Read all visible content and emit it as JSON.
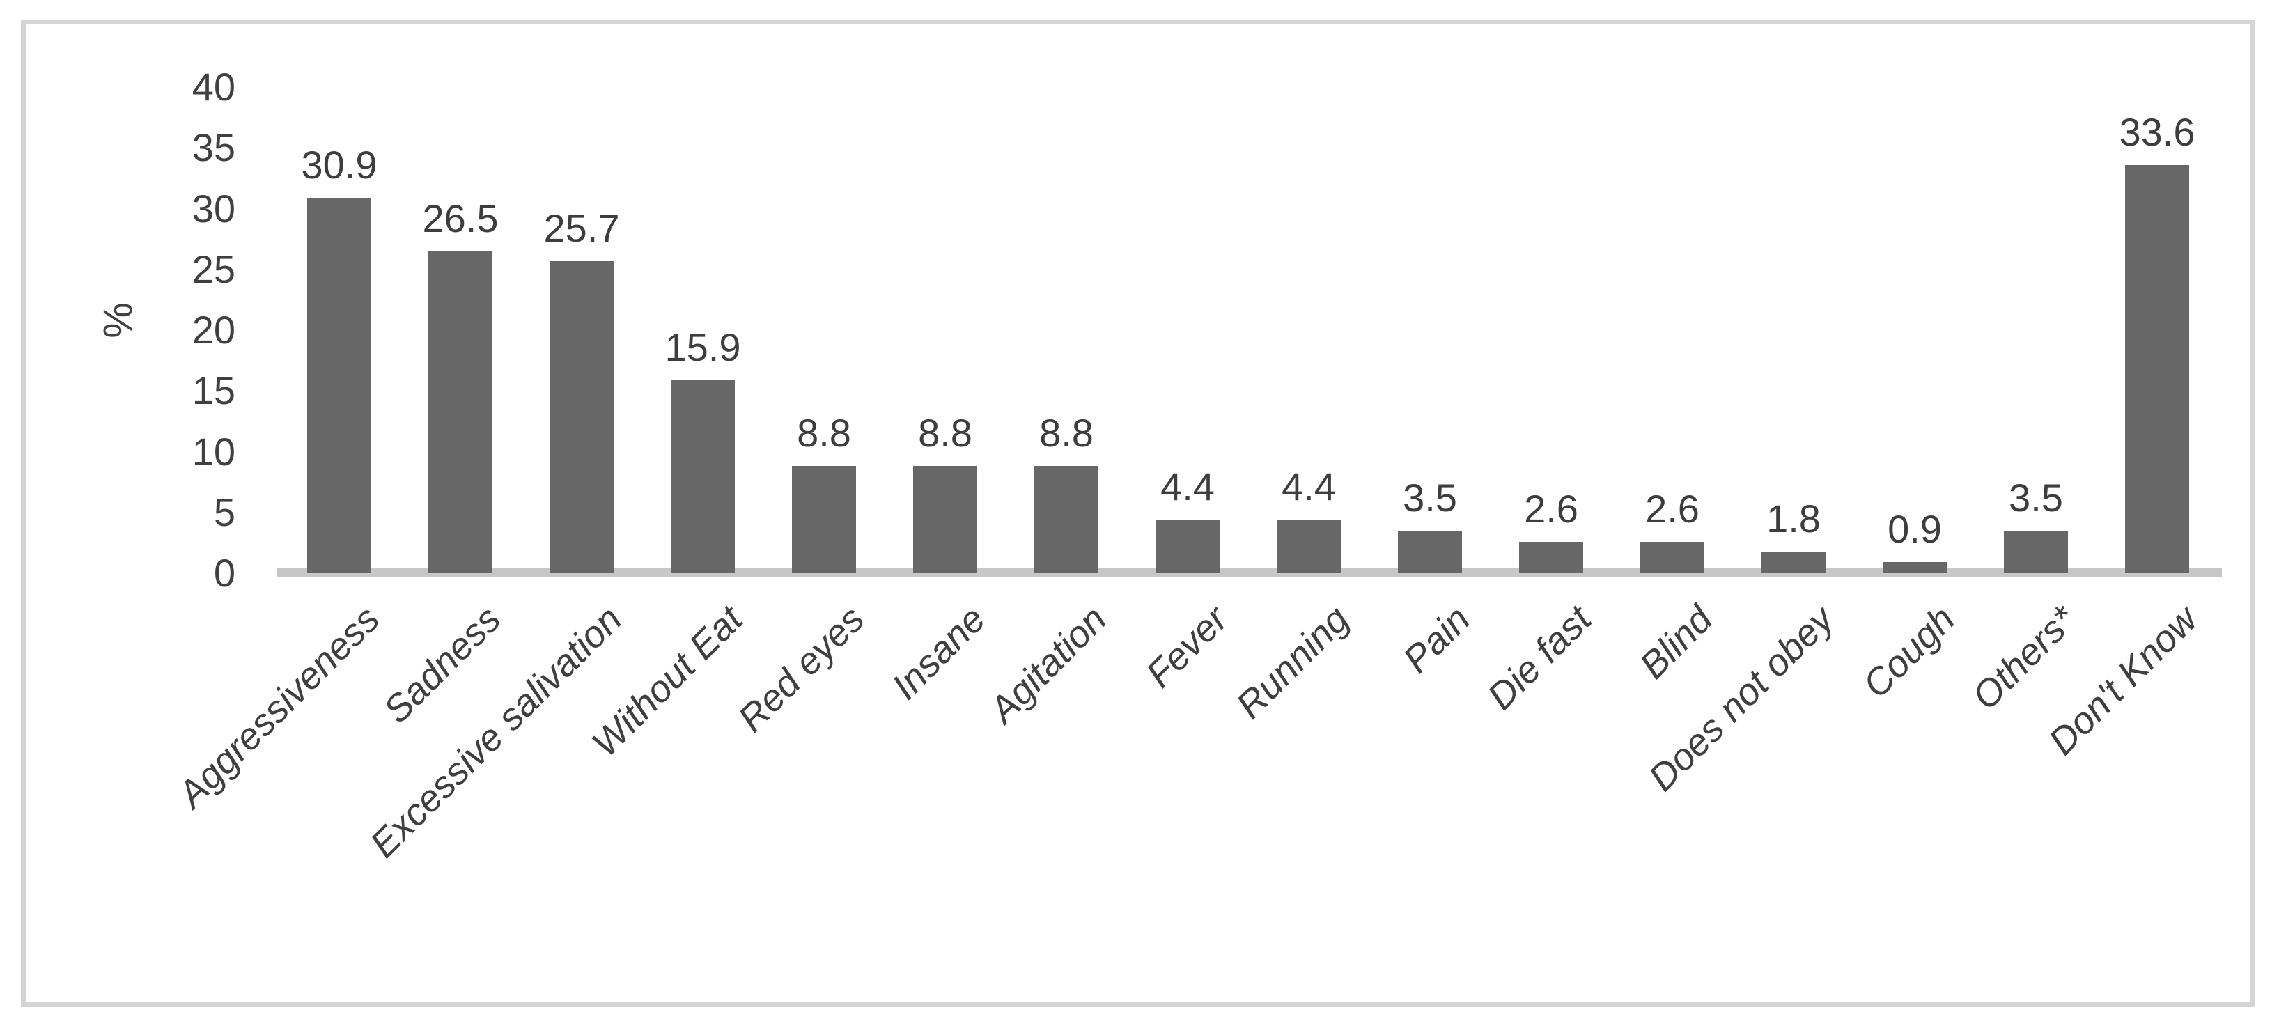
{
  "chart_data": {
    "type": "bar",
    "title": "",
    "xlabel": "",
    "ylabel": "%",
    "ylim": [
      0,
      40
    ],
    "ytick_step": 5,
    "yticks": [
      40,
      35,
      30,
      25,
      20,
      15,
      10,
      5,
      0
    ],
    "grid": false,
    "legend": false,
    "categories": [
      "Aggressiveness",
      "Sadness",
      "Excessive salivation",
      "Without Eat",
      "Red eyes",
      "Insane",
      "Agitation",
      "Fever",
      "Running",
      "Pain",
      "Die fast",
      "Blind",
      "Does not obey",
      "Cough",
      "Others*",
      "Don't Know"
    ],
    "values": [
      30.9,
      26.5,
      25.7,
      15.9,
      8.8,
      8.8,
      8.8,
      4.4,
      4.4,
      3.5,
      2.6,
      2.6,
      1.8,
      0.9,
      3.5,
      33.6
    ],
    "value_label_format": "one-decimal",
    "colors": {
      "bar_fill": "#676767",
      "axis_line": "#c7c7c7",
      "tick_text": "#404040",
      "value_text": "#3d3d3d",
      "category_text": "#3f3f3f",
      "frame_border": "#d5d5d5",
      "background": "#ffffff"
    }
  }
}
